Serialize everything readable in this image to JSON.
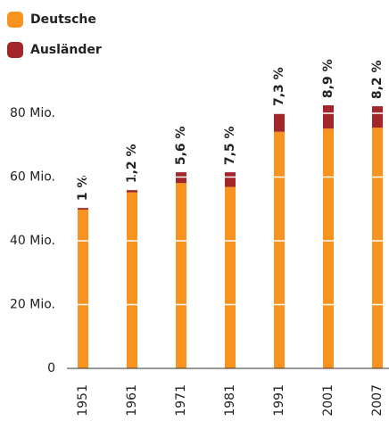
{
  "chart_data": {
    "type": "stacked_bar",
    "categories": [
      "1951",
      "1961",
      "1971",
      "1981",
      "1991",
      "2001",
      "2007"
    ],
    "series": [
      {
        "name": "Deutsche",
        "color": "#f7931e",
        "values": [
          49.8,
          55.2,
          58.1,
          56.9,
          74.2,
          75.2,
          75.5
        ]
      },
      {
        "name": "Ausländer",
        "color": "#a3262a",
        "values": [
          0.5,
          0.7,
          3.4,
          4.6,
          5.8,
          7.3,
          6.7
        ]
      }
    ],
    "annotations": [
      "1 %",
      "1,2 %",
      "5,6 %",
      "7,5 %",
      "7,3 %",
      "8,9 %",
      "8,2 %"
    ],
    "ylim": [
      0,
      80
    ],
    "yticks": [
      0,
      {
        "value": 20,
        "label": "20 Mio."
      },
      {
        "value": 40,
        "label": "40 Mio."
      },
      {
        "value": 60,
        "label": "60 Mio."
      },
      {
        "value": 80,
        "label": "80 Mio."
      }
    ],
    "grid": true,
    "legend": "top-left"
  }
}
